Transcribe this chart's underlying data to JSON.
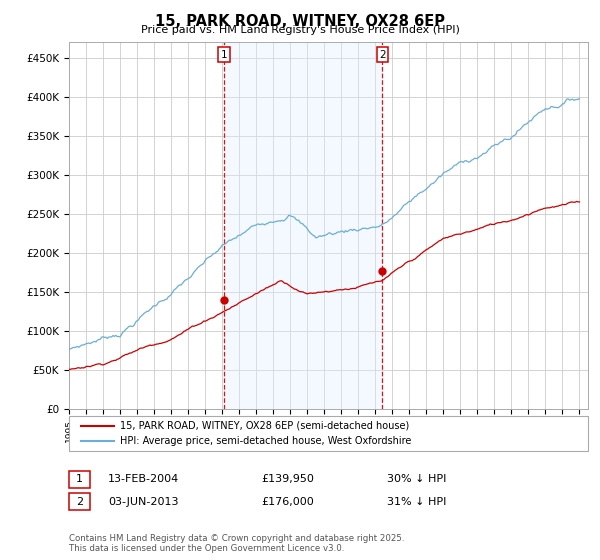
{
  "title": "15, PARK ROAD, WITNEY, OX28 6EP",
  "subtitle": "Price paid vs. HM Land Registry's House Price Index (HPI)",
  "ylabel_ticks": [
    "£0",
    "£50K",
    "£100K",
    "£150K",
    "£200K",
    "£250K",
    "£300K",
    "£350K",
    "£400K",
    "£450K"
  ],
  "ytick_values": [
    0,
    50000,
    100000,
    150000,
    200000,
    250000,
    300000,
    350000,
    400000,
    450000
  ],
  "ylim": [
    0,
    470000
  ],
  "hpi_color": "#6baed6",
  "price_color": "#cc0000",
  "shade_color": "#ddeeff",
  "marker1_x": 2004.12,
  "marker2_x": 2013.42,
  "marker1_price": 139950,
  "marker2_price": 176000,
  "annotation1": [
    "1",
    "13-FEB-2004",
    "£139,950",
    "30% ↓ HPI"
  ],
  "annotation2": [
    "2",
    "03-JUN-2013",
    "£176,000",
    "31% ↓ HPI"
  ],
  "legend_label1": "15, PARK ROAD, WITNEY, OX28 6EP (semi-detached house)",
  "legend_label2": "HPI: Average price, semi-detached house, West Oxfordshire",
  "footer": "Contains HM Land Registry data © Crown copyright and database right 2025.\nThis data is licensed under the Open Government Licence v3.0.",
  "background_color": "#ffffff",
  "grid_color": "#cccccc",
  "xlim_left": 1995,
  "xlim_right": 2025.5
}
